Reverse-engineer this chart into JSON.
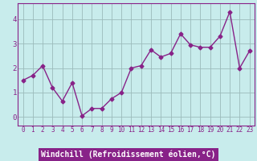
{
  "x": [
    0,
    1,
    2,
    3,
    4,
    5,
    6,
    7,
    8,
    9,
    10,
    11,
    12,
    13,
    14,
    15,
    16,
    17,
    18,
    19,
    20,
    21,
    22,
    23
  ],
  "y": [
    1.5,
    1.7,
    2.1,
    1.2,
    0.65,
    1.4,
    0.05,
    0.35,
    0.35,
    0.75,
    1.0,
    2.0,
    2.1,
    2.75,
    2.45,
    2.6,
    3.4,
    2.95,
    2.85,
    2.85,
    3.3,
    4.3,
    2.0,
    2.7
  ],
  "line_color": "#882288",
  "marker": "D",
  "markersize": 2.5,
  "linewidth": 1.0,
  "xlabel": "Windchill (Refroidissement éolien,°C)",
  "xlabel_fontsize": 7,
  "tick_fontsize": 5.5,
  "background_color": "#c8ecec",
  "grid_color": "#9bbaba",
  "xlim": [
    -0.5,
    23.5
  ],
  "ylim": [
    -0.35,
    4.65
  ],
  "yticks": [
    0,
    1,
    2,
    3,
    4
  ],
  "xticks": [
    0,
    1,
    2,
    3,
    4,
    5,
    6,
    7,
    8,
    9,
    10,
    11,
    12,
    13,
    14,
    15,
    16,
    17,
    18,
    19,
    20,
    21,
    22,
    23
  ],
  "label_bg_color": "#882288",
  "label_text_color": "#ffffff"
}
